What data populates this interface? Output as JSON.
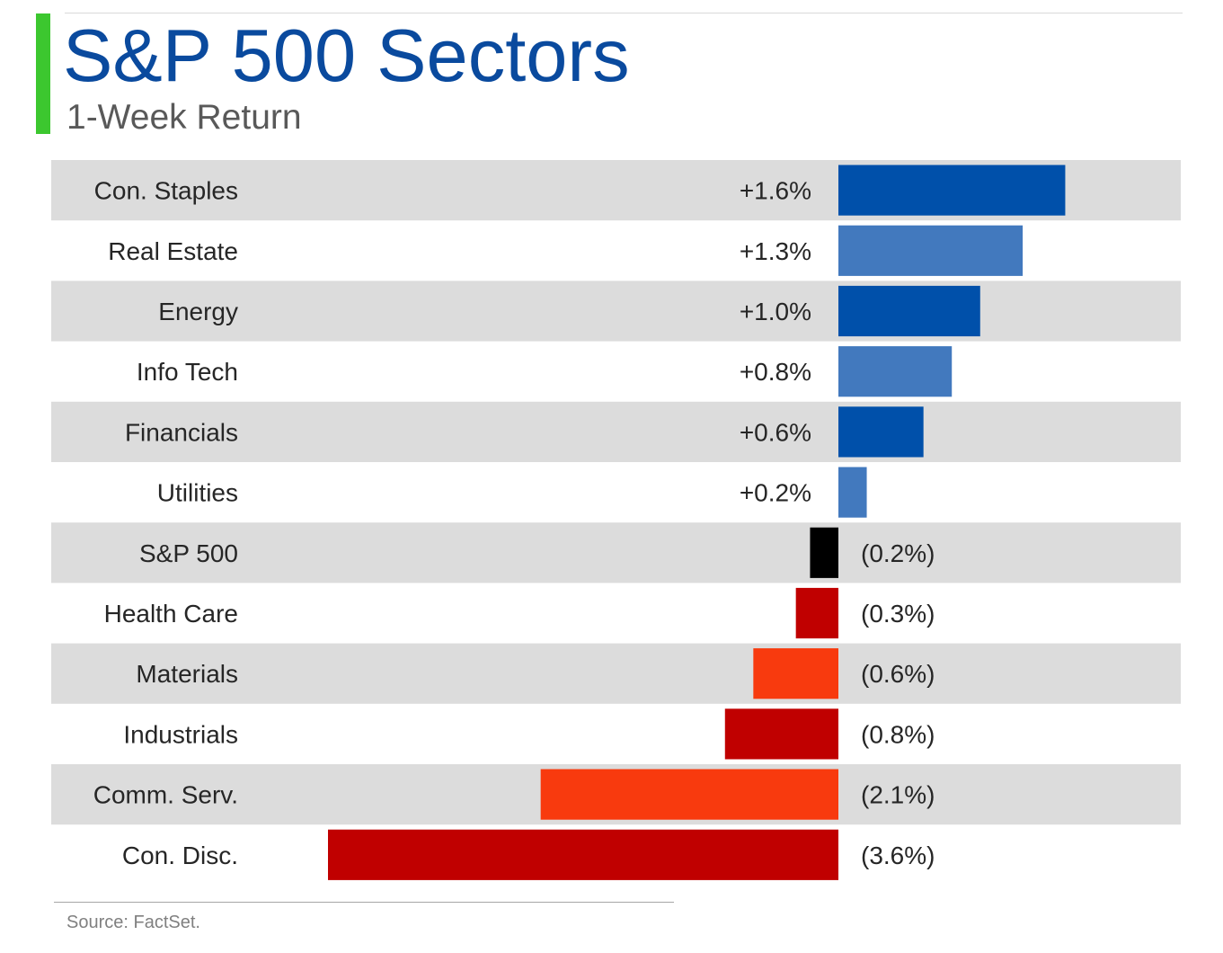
{
  "header": {
    "title": "S&P 500 Sectors",
    "subtitle": "1-Week Return"
  },
  "footer": {
    "source": "Source: FactSet."
  },
  "colors": {
    "accent": "#3cc72f",
    "title": "#0a4a9e",
    "stripe": "#dcdcdc"
  },
  "chart_data": {
    "type": "bar",
    "orientation": "horizontal",
    "title": "S&P 500 Sectors",
    "subtitle": "1-Week Return",
    "unit": "%",
    "categories": [
      "Con. Staples",
      "Real Estate",
      "Energy",
      "Info Tech",
      "Financials",
      "Utilities",
      "S&P 500",
      "Health Care",
      "Materials",
      "Industrials",
      "Comm. Serv.",
      "Con. Disc."
    ],
    "values": [
      1.6,
      1.3,
      1.0,
      0.8,
      0.6,
      0.2,
      -0.2,
      -0.3,
      -0.6,
      -0.8,
      -2.1,
      -3.6
    ],
    "labels": [
      "+1.6%",
      "+1.3%",
      "+1.0%",
      "+0.8%",
      "+0.6%",
      "+0.2%",
      "(0.2%)",
      "(0.3%)",
      "(0.6%)",
      "(0.8%)",
      "(2.1%)",
      "(3.6%)"
    ],
    "bar_colors": [
      "#0050aa",
      "#4279be",
      "#0050aa",
      "#4279be",
      "#0050aa",
      "#4279be",
      "#000000",
      "#c00000",
      "#f83a0e",
      "#c00000",
      "#f83a0e",
      "#c00000"
    ],
    "row_striping": true,
    "xlim": [
      -3.6,
      1.6
    ]
  }
}
